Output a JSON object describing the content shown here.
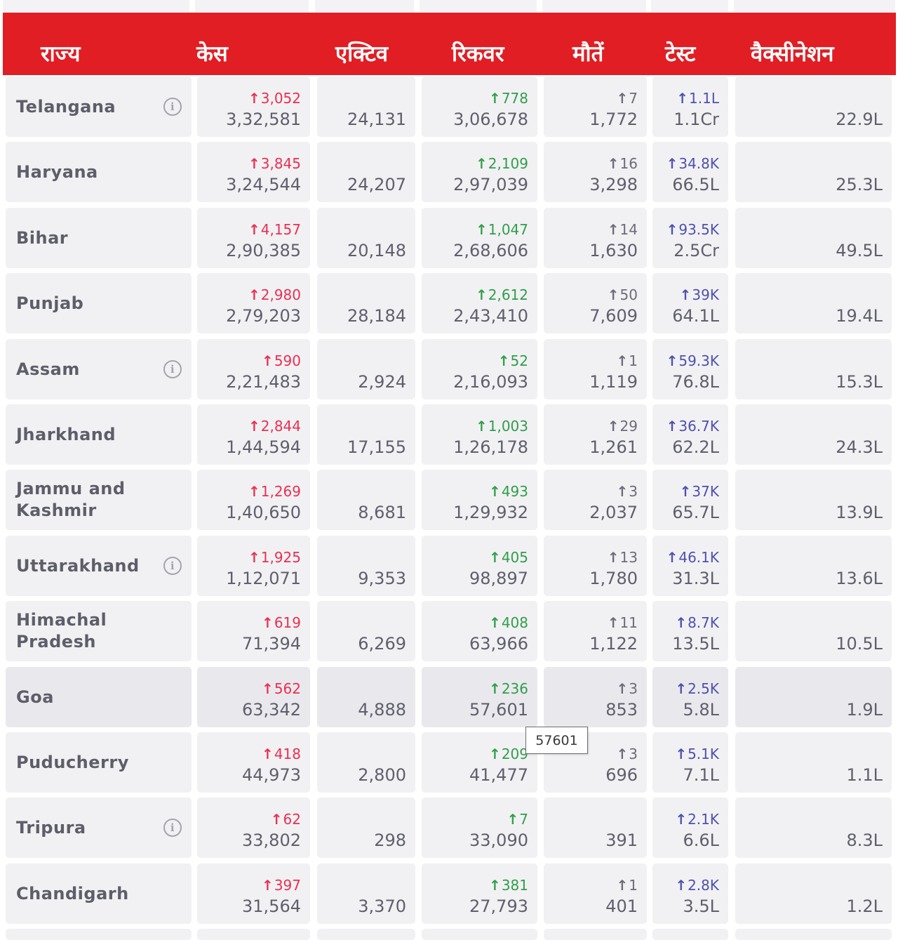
{
  "header": {
    "columns": [
      "राज्य",
      "केस",
      "एक्टिव",
      "रिकवर",
      "मौतें",
      "टेस्ट",
      "वैक्सीनेशन"
    ]
  },
  "rows": [
    {
      "state": "Telangana",
      "info": true,
      "cases": {
        "delta": "3,052",
        "total": "3,32,581"
      },
      "active": "24,131",
      "recovered": {
        "delta": "778",
        "total": "3,06,678"
      },
      "deaths": {
        "delta": "7",
        "total": "1,772"
      },
      "tests": {
        "delta": "1.1L",
        "total": "1.1Cr"
      },
      "vaccination": "22.9L"
    },
    {
      "state": "Haryana",
      "info": false,
      "cases": {
        "delta": "3,845",
        "total": "3,24,544"
      },
      "active": "24,207",
      "recovered": {
        "delta": "2,109",
        "total": "2,97,039"
      },
      "deaths": {
        "delta": "16",
        "total": "3,298"
      },
      "tests": {
        "delta": "34.8K",
        "total": "66.5L"
      },
      "vaccination": "25.3L"
    },
    {
      "state": "Bihar",
      "info": false,
      "cases": {
        "delta": "4,157",
        "total": "2,90,385"
      },
      "active": "20,148",
      "recovered": {
        "delta": "1,047",
        "total": "2,68,606"
      },
      "deaths": {
        "delta": "14",
        "total": "1,630"
      },
      "tests": {
        "delta": "93.5K",
        "total": "2.5Cr"
      },
      "vaccination": "49.5L"
    },
    {
      "state": "Punjab",
      "info": false,
      "cases": {
        "delta": "2,980",
        "total": "2,79,203"
      },
      "active": "28,184",
      "recovered": {
        "delta": "2,612",
        "total": "2,43,410"
      },
      "deaths": {
        "delta": "50",
        "total": "7,609"
      },
      "tests": {
        "delta": "39K",
        "total": "64.1L"
      },
      "vaccination": "19.4L"
    },
    {
      "state": "Assam",
      "info": true,
      "cases": {
        "delta": "590",
        "total": "2,21,483"
      },
      "active": "2,924",
      "recovered": {
        "delta": "52",
        "total": "2,16,093"
      },
      "deaths": {
        "delta": "1",
        "total": "1,119"
      },
      "tests": {
        "delta": "59.3K",
        "total": "76.8L"
      },
      "vaccination": "15.3L"
    },
    {
      "state": "Jharkhand",
      "info": false,
      "cases": {
        "delta": "2,844",
        "total": "1,44,594"
      },
      "active": "17,155",
      "recovered": {
        "delta": "1,003",
        "total": "1,26,178"
      },
      "deaths": {
        "delta": "29",
        "total": "1,261"
      },
      "tests": {
        "delta": "36.7K",
        "total": "62.2L"
      },
      "vaccination": "24.3L"
    },
    {
      "state": "Jammu and Kashmir",
      "info": false,
      "cases": {
        "delta": "1,269",
        "total": "1,40,650"
      },
      "active": "8,681",
      "recovered": {
        "delta": "493",
        "total": "1,29,932"
      },
      "deaths": {
        "delta": "3",
        "total": "2,037"
      },
      "tests": {
        "delta": "37K",
        "total": "65.7L"
      },
      "vaccination": "13.9L"
    },
    {
      "state": "Uttarakhand",
      "info": true,
      "cases": {
        "delta": "1,925",
        "total": "1,12,071"
      },
      "active": "9,353",
      "recovered": {
        "delta": "405",
        "total": "98,897"
      },
      "deaths": {
        "delta": "13",
        "total": "1,780"
      },
      "tests": {
        "delta": "46.1K",
        "total": "31.3L"
      },
      "vaccination": "13.6L"
    },
    {
      "state": "Himachal Pradesh",
      "info": false,
      "cases": {
        "delta": "619",
        "total": "71,394"
      },
      "active": "6,269",
      "recovered": {
        "delta": "408",
        "total": "63,966"
      },
      "deaths": {
        "delta": "11",
        "total": "1,122"
      },
      "tests": {
        "delta": "8.7K",
        "total": "13.5L"
      },
      "vaccination": "10.5L"
    },
    {
      "state": "Goa",
      "info": false,
      "highlighted": true,
      "cases": {
        "delta": "562",
        "total": "63,342"
      },
      "active": "4,888",
      "recovered": {
        "delta": "236",
        "total": "57,601"
      },
      "deaths": {
        "delta": "3",
        "total": "853"
      },
      "tests": {
        "delta": "2.5K",
        "total": "5.8L"
      },
      "vaccination": "1.9L"
    },
    {
      "state": "Puducherry",
      "info": false,
      "cases": {
        "delta": "418",
        "total": "44,973"
      },
      "active": "2,800",
      "recovered": {
        "delta": "209",
        "total": "41,477"
      },
      "deaths": {
        "delta": "3",
        "total": "696"
      },
      "tests": {
        "delta": "5.1K",
        "total": "7.1L"
      },
      "vaccination": "1.1L"
    },
    {
      "state": "Tripura",
      "info": true,
      "cases": {
        "delta": "62",
        "total": "33,802"
      },
      "active": "298",
      "recovered": {
        "delta": "7",
        "total": "33,090"
      },
      "deaths": {
        "delta": "",
        "total": "391"
      },
      "tests": {
        "delta": "2.1K",
        "total": "6.6L"
      },
      "vaccination": "8.3L"
    },
    {
      "state": "Chandigarh",
      "info": false,
      "cases": {
        "delta": "397",
        "total": "31,564"
      },
      "active": "3,370",
      "recovered": {
        "delta": "381",
        "total": "27,793"
      },
      "deaths": {
        "delta": "1",
        "total": "401"
      },
      "tests": {
        "delta": "2.8K",
        "total": "3.5L"
      },
      "vaccination": "1.2L"
    }
  ],
  "tooltip": {
    "text": "57601"
  },
  "colors": {
    "header_bg": "#e01e24",
    "header_text": "#ffffff",
    "cell_bg": "#f1f1f3",
    "highlight_bg": "#e9e9ed",
    "delta_cases": "#ea2f53",
    "delta_recovered": "#2f9e4a",
    "delta_deaths": "#6c6c78",
    "delta_tests": "#4f4fb0"
  },
  "icons": {
    "arrow": "↑",
    "info": "info-icon"
  }
}
